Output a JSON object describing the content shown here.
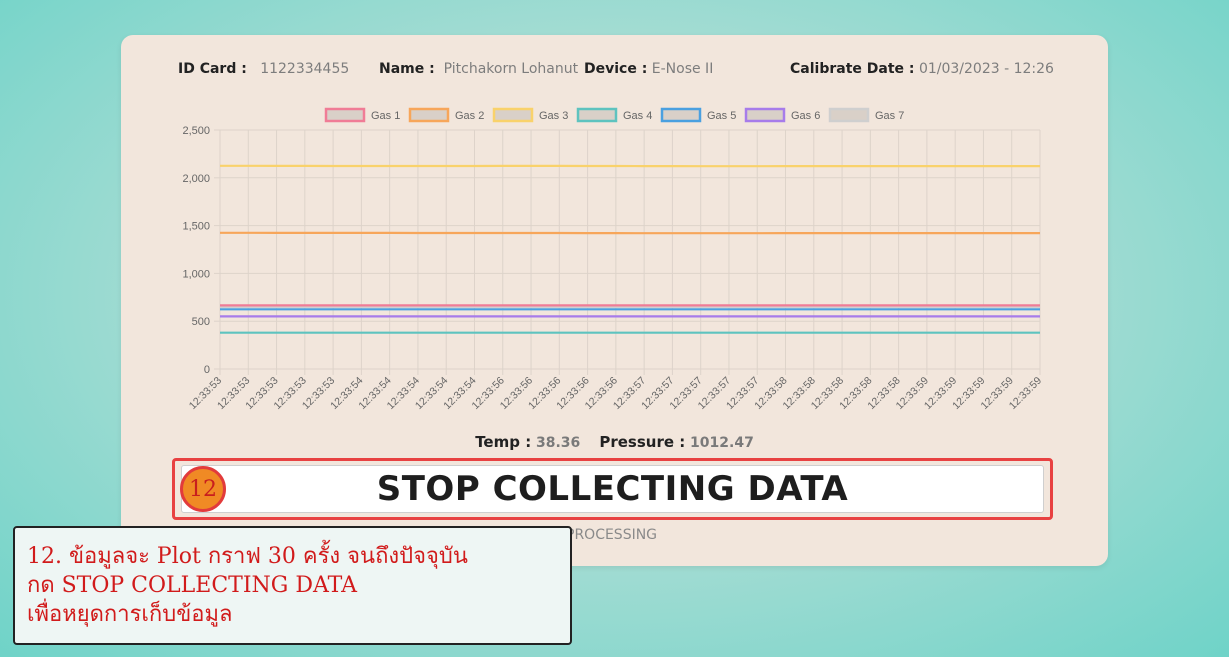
{
  "header": {
    "id_label": "ID Card :",
    "id_value": "1122334455",
    "name_label": "Name :",
    "name_value": "Pitchakorn Lohanut",
    "device_label": "Device :",
    "device_value": "E-Nose II",
    "calib_label": "Calibrate Date :",
    "calib_value": "01/03/2023 - 12:26"
  },
  "chart_data": {
    "type": "line",
    "title": "",
    "xlabel": "",
    "ylabel": "",
    "ylim": [
      0,
      2500
    ],
    "yticks": [
      0,
      500,
      1000,
      1500,
      2000,
      2500
    ],
    "ytick_labels": [
      "0",
      "500",
      "1,000",
      "1,500",
      "2,000",
      "2,500"
    ],
    "grid": true,
    "legend_position": "top",
    "x": [
      "12:33:53",
      "12:33:53",
      "12:33:53",
      "12:33:53",
      "12:33:53",
      "12:33:54",
      "12:33:54",
      "12:33:54",
      "12:33:54",
      "12:33:54",
      "12:33:56",
      "12:33:56",
      "12:33:56",
      "12:33:56",
      "12:33:56",
      "12:33:57",
      "12:33:57",
      "12:33:57",
      "12:33:57",
      "12:33:57",
      "12:33:58",
      "12:33:58",
      "12:33:58",
      "12:33:58",
      "12:33:58",
      "12:33:59",
      "12:33:59",
      "12:33:59",
      "12:33:59",
      "12:33:59"
    ],
    "series": [
      {
        "name": "Gas 1",
        "color": "#f07c96",
        "values": [
          665,
          665,
          665,
          665,
          665,
          665,
          665,
          665,
          665,
          665,
          665,
          665,
          665,
          665,
          665,
          665,
          665,
          665,
          665,
          665,
          665,
          665,
          665,
          665,
          665,
          665,
          665,
          665,
          665,
          665
        ]
      },
      {
        "name": "Gas 2",
        "color": "#f7a65a",
        "values": [
          1425,
          1425,
          1424,
          1424,
          1424,
          1424,
          1424,
          1423,
          1423,
          1423,
          1423,
          1423,
          1423,
          1422,
          1422,
          1421,
          1421,
          1421,
          1421,
          1421,
          1422,
          1422,
          1422,
          1422,
          1422,
          1422,
          1422,
          1422,
          1422,
          1422
        ]
      },
      {
        "name": "Gas 3",
        "color": "#f9d26b",
        "values": [
          2125,
          2125,
          2124,
          2124,
          2123,
          2123,
          2123,
          2123,
          2123,
          2123,
          2124,
          2124,
          2124,
          2123,
          2123,
          2122,
          2122,
          2121,
          2121,
          2121,
          2122,
          2122,
          2122,
          2122,
          2122,
          2122,
          2122,
          2122,
          2122,
          2122
        ]
      },
      {
        "name": "Gas 4",
        "color": "#5ec3bf",
        "values": [
          380,
          380,
          380,
          380,
          380,
          380,
          380,
          380,
          380,
          380,
          380,
          380,
          380,
          380,
          380,
          380,
          380,
          380,
          380,
          380,
          380,
          380,
          380,
          380,
          380,
          380,
          380,
          380,
          380,
          380
        ]
      },
      {
        "name": "Gas 5",
        "color": "#4aa0e0",
        "values": [
          625,
          625,
          625,
          625,
          625,
          625,
          625,
          625,
          625,
          625,
          625,
          625,
          625,
          625,
          625,
          625,
          625,
          625,
          625,
          625,
          625,
          625,
          625,
          625,
          625,
          625,
          625,
          625,
          625,
          625
        ]
      },
      {
        "name": "Gas 6",
        "color": "#a77cea",
        "values": [
          550,
          550,
          550,
          550,
          550,
          550,
          550,
          550,
          550,
          550,
          550,
          550,
          550,
          550,
          550,
          550,
          550,
          550,
          550,
          550,
          550,
          550,
          550,
          550,
          550,
          550,
          550,
          550,
          550,
          550
        ]
      },
      {
        "name": "Gas 7",
        "color": "#cfcfcf",
        "values": [
          650,
          650,
          650,
          650,
          650,
          650,
          650,
          650,
          650,
          650,
          650,
          650,
          650,
          650,
          650,
          650,
          650,
          650,
          650,
          650,
          650,
          650,
          650,
          650,
          650,
          650,
          650,
          650,
          650,
          650
        ]
      }
    ]
  },
  "readout": {
    "temp_label": "Temp :",
    "temp_value": "38.36",
    "pressure_label": "Pressure :",
    "pressure_value": "1012.47"
  },
  "controls": {
    "stop_label": "STOP COLLECTING DATA",
    "status_text": "PROCESSING"
  },
  "tutorial": {
    "step_number": "12",
    "lines": [
      "12. ข้อมูลจะ Plot กราฟ 30 ครั้ง จนถึงปัจจุบัน",
      "กด STOP COLLECTING DATA",
      "เพื่อหยุดการเก็บข้อมูล"
    ]
  },
  "colors": {
    "badge_fill": "#f08a24",
    "badge_border": "#e23b3b",
    "highlight_border": "#e84141",
    "note_text": "#d11b1b"
  }
}
